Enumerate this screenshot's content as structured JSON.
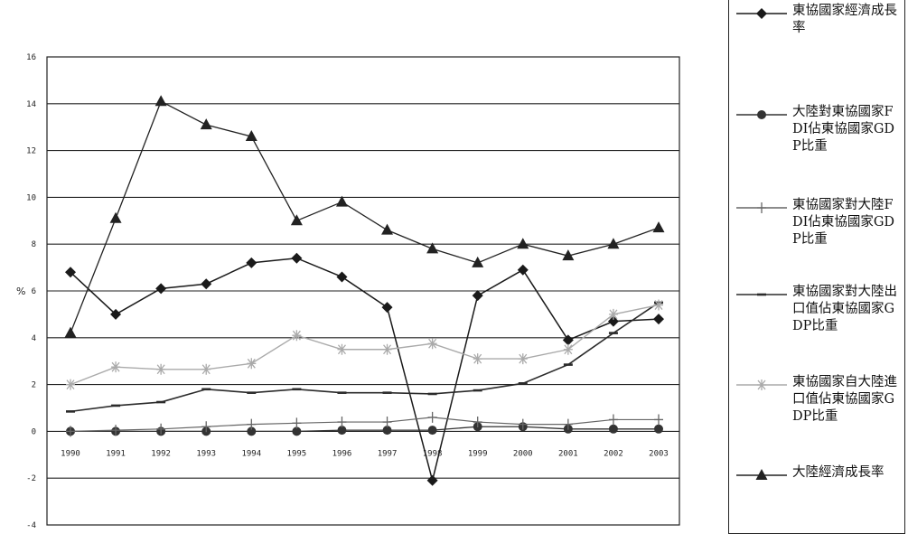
{
  "chart_data": {
    "type": "line",
    "categories": [
      "1990",
      "1991",
      "1992",
      "1993",
      "1994",
      "1995",
      "1996",
      "1997",
      "1998",
      "1999",
      "2000",
      "2001",
      "2002",
      "2003"
    ],
    "ylabel": "%",
    "ylim": [
      -4,
      16
    ],
    "yticks": [
      "16",
      "14",
      "12",
      "10",
      "8",
      "6",
      "4",
      "2",
      "0",
      "-2",
      "-4"
    ],
    "grid": true,
    "legend_position": "right",
    "series": [
      {
        "name": "東協國家經濟成長率",
        "marker": "diamond",
        "color": "#1a1a1a",
        "values": [
          6.8,
          5.0,
          6.1,
          6.3,
          7.2,
          7.4,
          6.6,
          5.3,
          -2.1,
          5.8,
          6.9,
          3.9,
          4.7,
          4.8
        ]
      },
      {
        "name": "大陸對東協國家FDI佔東協國家GDP比重",
        "marker": "circle",
        "color": "#333333",
        "values": [
          0.0,
          0.0,
          0.0,
          0.0,
          0.0,
          0.0,
          0.05,
          0.05,
          0.05,
          0.2,
          0.2,
          0.1,
          0.1,
          0.1
        ]
      },
      {
        "name": "東協國家對大陸FDI佔東協國家GDP比重",
        "marker": "plus",
        "color": "#666666",
        "values": [
          0.0,
          0.05,
          0.1,
          0.2,
          0.3,
          0.35,
          0.4,
          0.4,
          0.6,
          0.4,
          0.3,
          0.3,
          0.5,
          0.5
        ]
      },
      {
        "name": "東協國家對大陸出口值佔東協國家GDP比重",
        "marker": "dash",
        "color": "#2b2b2b",
        "values": [
          0.85,
          1.1,
          1.25,
          1.8,
          1.65,
          1.8,
          1.65,
          1.65,
          1.6,
          1.75,
          2.05,
          2.85,
          4.2,
          5.5
        ]
      },
      {
        "name": "東協國家自大陸進口值佔東協國家GDP比重",
        "marker": "star",
        "color": "#aaaaaa",
        "values": [
          2.0,
          2.75,
          2.65,
          2.65,
          2.9,
          4.1,
          3.5,
          3.5,
          3.75,
          3.1,
          3.1,
          3.5,
          5.0,
          5.4
        ]
      },
      {
        "name": "大陸經濟成長率",
        "marker": "triangle",
        "color": "#222222",
        "values": [
          4.2,
          9.1,
          14.1,
          13.1,
          12.6,
          9.0,
          9.8,
          8.6,
          7.8,
          7.2,
          8.0,
          7.5,
          8.0,
          8.7
        ]
      }
    ]
  }
}
